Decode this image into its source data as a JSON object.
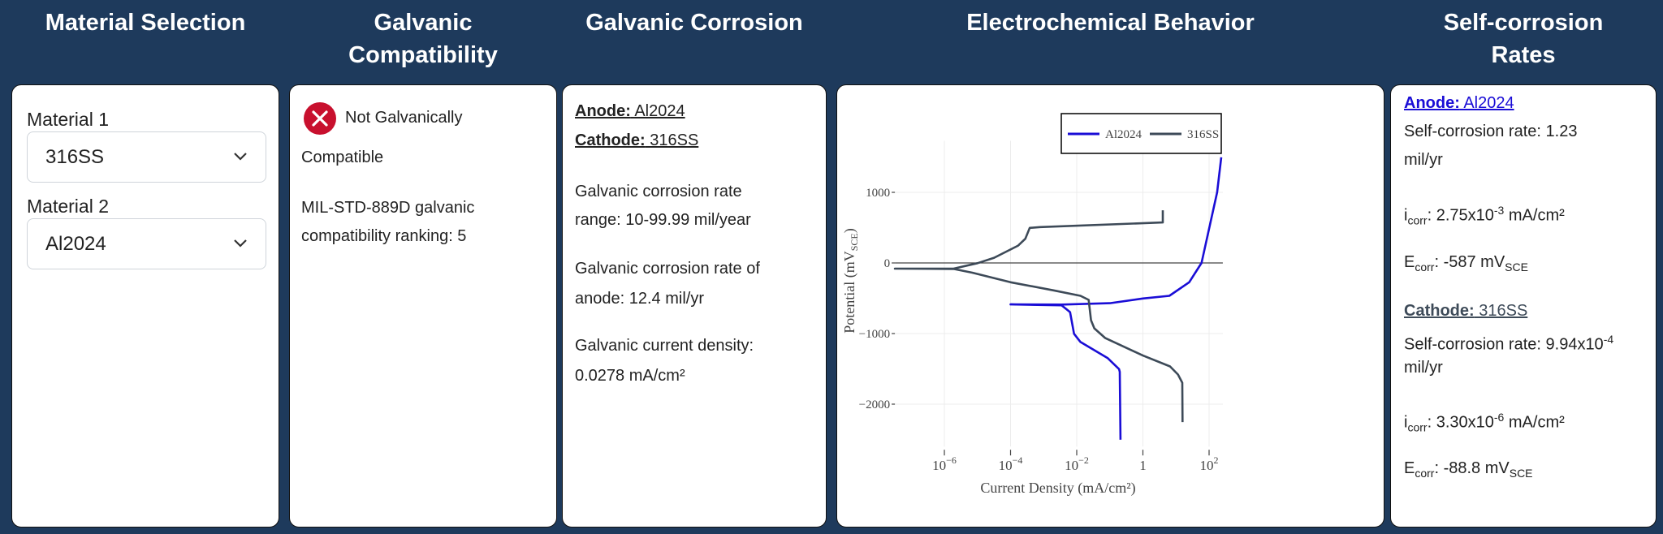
{
  "headers": {
    "material_selection": "Material Selection",
    "galvanic_compatibility_1": "Galvanic",
    "galvanic_compatibility_2": "Compatibility",
    "galvanic_corrosion": "Galvanic Corrosion",
    "electrochemical_behavior": "Electrochemical Behavior",
    "self_corrosion_1": "Self-corrosion",
    "self_corrosion_2": "Rates"
  },
  "material_selection": {
    "material1_label": "Material 1",
    "material1_value": "316SS",
    "material2_label": "Material 2",
    "material2_value": "Al2024"
  },
  "compatibility": {
    "status_icon": "x-circle-icon",
    "status_color": "#c8102e",
    "status_line1": "Not Galvanically",
    "status_line2": "Compatible",
    "ranking_line1": "MIL-STD-889D galvanic",
    "ranking_line2": "compatibility ranking: 5"
  },
  "galvanic_corrosion": {
    "anode_label": "Anode:",
    "anode_value": " Al2024",
    "cathode_label": "Cathode:",
    "cathode_value": " 316SS",
    "rate_range_line1": "Galvanic corrosion rate",
    "rate_range_line2": "range: 10-99.99 mil/year",
    "rate_anode_line1": "Galvanic corrosion rate of",
    "rate_anode_line2": "anode: 12.4 mil/yr",
    "current_density_line1": "Galvanic current density:",
    "current_density_line2": "0.0278 mA/cm²"
  },
  "self_corrosion": {
    "anode_label": "Anode:",
    "anode_value": " Al2024",
    "anode_color": "#1a0dd6",
    "anode_rate_line1": "Self-corrosion rate: 1.23",
    "anode_rate_line2": "mil/yr",
    "anode_icorr_i": "i",
    "anode_icorr_sub": "corr",
    "anode_icorr_val": ": 2.75x10",
    "anode_icorr_exp": "-3",
    "anode_icorr_unit": " mA/cm²",
    "anode_ecorr_e": "E",
    "anode_ecorr_sub": "corr",
    "anode_ecorr_val": ": -587 mV",
    "anode_ecorr_unit_sub": "SCE",
    "cathode_label": "Cathode:",
    "cathode_value": " 316SS",
    "cathode_color": "#3d4a58",
    "cathode_rate_line1": "Self-corrosion rate: 9.94x10",
    "cathode_rate_exp": "-4",
    "cathode_rate_line2": "mil/yr",
    "cathode_icorr_i": "i",
    "cathode_icorr_sub": "corr",
    "cathode_icorr_val": ": 3.30x10",
    "cathode_icorr_exp": "-6",
    "cathode_icorr_unit": " mA/cm²",
    "cathode_ecorr_e": "E",
    "cathode_ecorr_sub": "corr",
    "cathode_ecorr_val": ": -88.8 mV",
    "cathode_ecorr_unit_sub": "SCE"
  },
  "chart_data": {
    "type": "line",
    "xlabel": "Current Density (mA/cm²)",
    "ylabel_main": "Potential (mV",
    "ylabel_sub": "SCE",
    "ylabel_end": ")",
    "x_scale": "log",
    "xlim": [
      3.2e-08,
      260
    ],
    "ylim": [
      -2600,
      1730
    ],
    "x_ticks": [
      {
        "value": 1e-06,
        "base": "10",
        "exp": "−6"
      },
      {
        "value": 0.0001,
        "base": "10",
        "exp": "−4"
      },
      {
        "value": 0.01,
        "base": "10",
        "exp": "−2"
      },
      {
        "value": 1,
        "base": "1",
        "exp": ""
      },
      {
        "value": 100,
        "base": "10",
        "exp": "2"
      }
    ],
    "y_ticks": [
      {
        "value": 1000,
        "label": "1000"
      },
      {
        "value": 0,
        "label": "0"
      },
      {
        "value": -1000,
        "label": "−1000"
      },
      {
        "value": -2000,
        "label": "−2000"
      }
    ],
    "grid": true,
    "zero_line": true,
    "legend_placement": "top-right",
    "series": [
      {
        "name": "Al2024",
        "color": "#1a0dd6",
        "points": [
          [
            0.21,
            -2504
          ],
          [
            0.2,
            -1542
          ],
          [
            0.19,
            -1504
          ],
          [
            0.087,
            -1350
          ],
          [
            0.013,
            -1119
          ],
          [
            0.0083,
            -1004
          ],
          [
            0.0063,
            -696
          ],
          [
            0.0035,
            -600
          ],
          [
            0.0001,
            -587
          ],
          [
            0.0035,
            -590
          ],
          [
            0.1,
            -570
          ],
          [
            1,
            -504
          ],
          [
            6.3,
            -465
          ],
          [
            25,
            -273
          ],
          [
            59,
            0
          ],
          [
            110,
            573
          ],
          [
            175,
            1000
          ],
          [
            234,
            1496
          ]
        ]
      },
      {
        "name": "316SS",
        "color": "#3d4a58",
        "points": [
          [
            4.0,
            746
          ],
          [
            4.0,
            573
          ],
          [
            0.00079,
            508
          ],
          [
            0.00038,
            496
          ],
          [
            0.00028,
            342
          ],
          [
            0.00017,
            246
          ],
          [
            3.2e-05,
            73
          ],
          [
            1e-05,
            -4
          ],
          [
            1.9e-06,
            -81
          ],
          [
            3.2e-08,
            -81
          ],
          [
            1.9e-06,
            -85
          ],
          [
            7e-06,
            -138
          ],
          [
            0.0001,
            -273
          ],
          [
            0.002,
            -388
          ],
          [
            0.013,
            -465
          ],
          [
            0.023,
            -523
          ],
          [
            0.027,
            -811
          ],
          [
            0.034,
            -927
          ],
          [
            0.072,
            -1062
          ],
          [
            1,
            -1312
          ],
          [
            6.6,
            -1465
          ],
          [
            11.5,
            -1581
          ],
          [
            15.5,
            -1696
          ],
          [
            15.8,
            -2254
          ]
        ]
      }
    ]
  }
}
